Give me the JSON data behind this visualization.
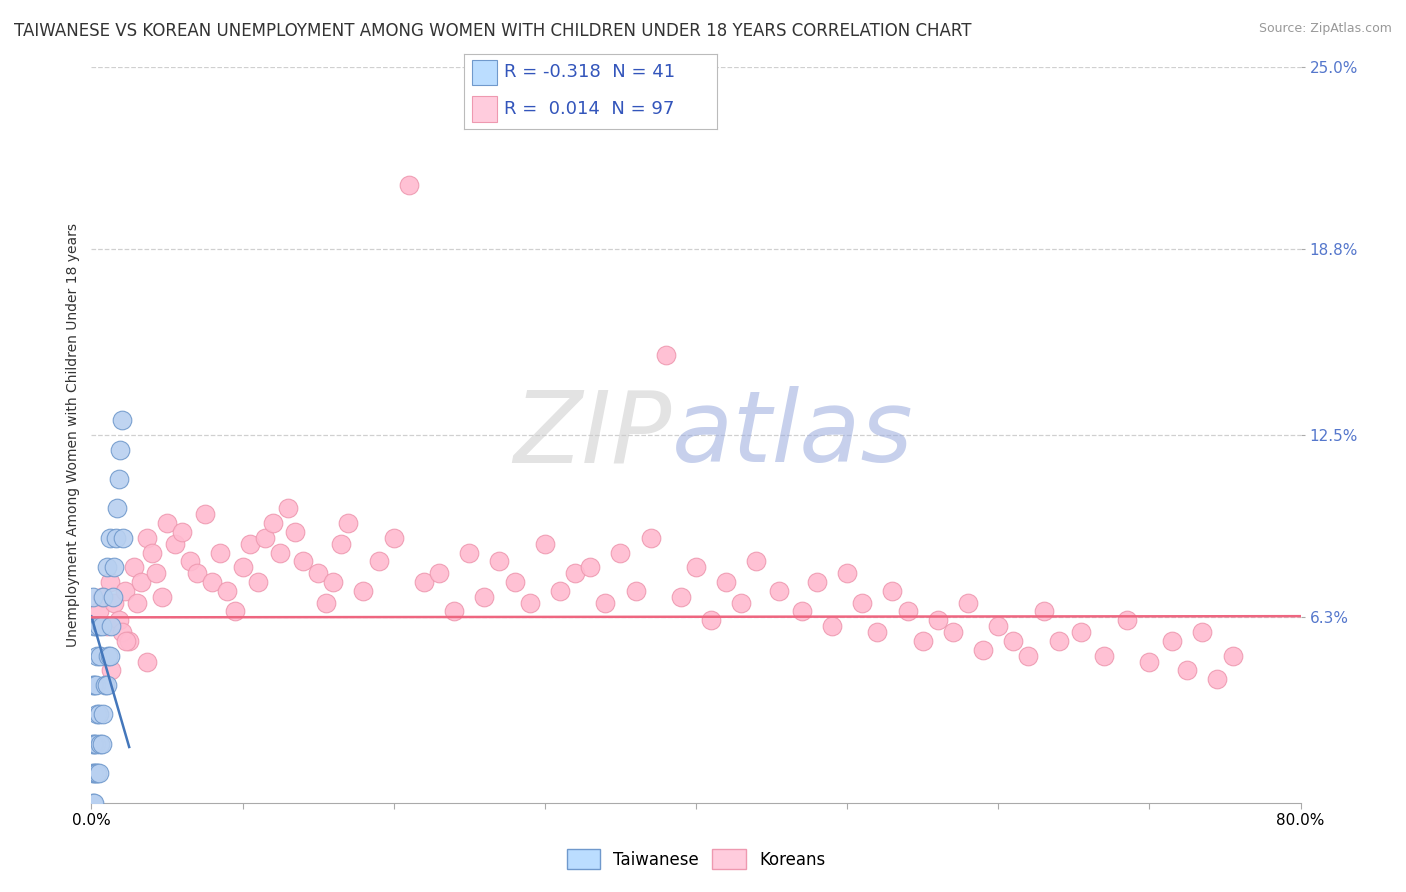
{
  "title": "TAIWANESE VS KOREAN UNEMPLOYMENT AMONG WOMEN WITH CHILDREN UNDER 18 YEARS CORRELATION CHART",
  "source": "Source: ZipAtlas.com",
  "ylabel": "Unemployment Among Women with Children Under 18 years",
  "xlim": [
    0.0,
    0.8
  ],
  "ylim": [
    0.0,
    0.25
  ],
  "ytick_labels_right": [
    "25.0%",
    "18.8%",
    "12.5%",
    "6.3%"
  ],
  "ytick_values_right": [
    0.25,
    0.188,
    0.125,
    0.063
  ],
  "background_color": "#ffffff",
  "grid_color": "#d0d0d0",
  "taiwanese_color": "#b8d0f0",
  "taiwanese_edge": "#7099cc",
  "korean_color": "#ffbbd0",
  "korean_edge": "#ee99b0",
  "taiwanese_R": -0.318,
  "taiwanese_N": 41,
  "korean_R": 0.014,
  "korean_N": 97,
  "taiwanese_line_color": "#4477bb",
  "korean_line_color": "#ee6680",
  "legend_box_color_taiwanese": "#bbddff",
  "legend_box_color_korean": "#ffccdd",
  "title_fontsize": 12,
  "axis_label_fontsize": 10,
  "tick_fontsize": 11,
  "legend_fontsize": 13
}
